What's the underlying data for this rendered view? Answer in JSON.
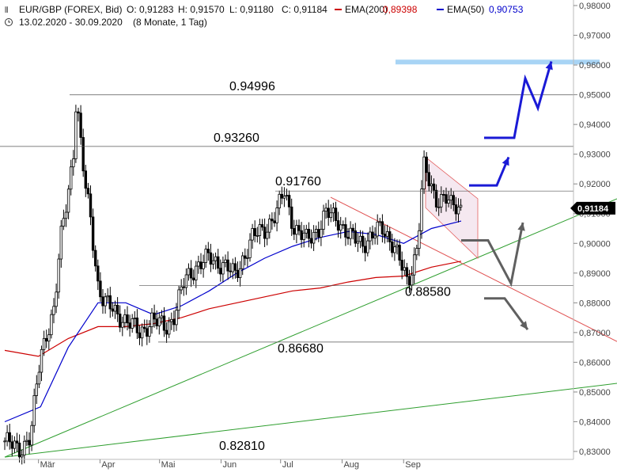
{
  "header": {
    "symbol": "EUR/GBP (FOREX, Bid)",
    "open": "O: 0,91283",
    "high": "H: 0,91570",
    "low": "L: 0,91180",
    "close": "C: 0,91184",
    "ema200_label": "EMA(200)",
    "ema200_value": "0,89398",
    "ema50_label": "EMA(50)",
    "ema50_value": "0,90753",
    "range": "13.02.2020 - 30.09.2020",
    "period": "(8 Monate, 1 Tag)"
  },
  "price_badge": "0,91184",
  "levels": [
    {
      "label": "0.94996",
      "value": 0.94996
    },
    {
      "label": "0.93260",
      "value": 0.9326
    },
    {
      "label": "0.91760",
      "value": 0.9176
    },
    {
      "label": "0.88580",
      "value": 0.8858
    },
    {
      "label": "0.86680",
      "value": 0.8668
    },
    {
      "label": "0.82810",
      "value": 0.8281
    }
  ],
  "colors": {
    "candle": "#000000",
    "ema200": "#cc0000",
    "ema50": "#0000cc",
    "trend_green": "#2e9e2e",
    "trend_red": "#e05050",
    "target_zone": "#a8d4f5",
    "arrow_up": "#1a1ad6",
    "arrow_gray": "#606060",
    "badge_bg": "#000000"
  },
  "chart_data": {
    "type": "candlestick",
    "title": "EUR/GBP (FOREX, Bid)",
    "ylim": [
      0.829,
      0.981
    ],
    "y_ticks": [
      "0,83000",
      "0,84000",
      "0,85000",
      "0,86000",
      "0,87000",
      "0,88000",
      "0,89000",
      "0,90000",
      "0,91000",
      "0,92000",
      "0,93000",
      "0,94000",
      "0,95000",
      "0,96000",
      "0,97000",
      "0,98000"
    ],
    "x_ticks": [
      "Mär",
      "Apr",
      "Mai",
      "Jun",
      "Jul",
      "Aug",
      "Sep"
    ],
    "close_path": [
      [
        "2020-02-13",
        0.8335
      ],
      [
        "2020-02-20",
        0.8305
      ],
      [
        "2020-02-26",
        0.835
      ],
      [
        "2020-03-02",
        0.862
      ],
      [
        "2020-03-05",
        0.87
      ],
      [
        "2020-03-09",
        0.878
      ],
      [
        "2020-03-12",
        0.9
      ],
      [
        "2020-03-16",
        0.918
      ],
      [
        "2020-03-19",
        0.933
      ],
      [
        "2020-03-20",
        0.9499
      ],
      [
        "2020-03-23",
        0.928
      ],
      [
        "2020-03-25",
        0.917
      ],
      [
        "2020-03-27",
        0.91
      ],
      [
        "2020-03-31",
        0.886
      ],
      [
        "2020-04-03",
        0.88
      ],
      [
        "2020-04-07",
        0.878
      ],
      [
        "2020-04-14",
        0.874
      ],
      [
        "2020-04-21",
        0.87
      ],
      [
        "2020-04-27",
        0.874
      ],
      [
        "2020-05-04",
        0.872
      ],
      [
        "2020-05-08",
        0.875
      ],
      [
        "2020-05-14",
        0.888
      ],
      [
        "2020-05-19",
        0.892
      ],
      [
        "2020-05-26",
        0.895
      ],
      [
        "2020-06-02",
        0.893
      ],
      [
        "2020-06-08",
        0.889
      ],
      [
        "2020-06-12",
        0.895
      ],
      [
        "2020-06-17",
        0.902
      ],
      [
        "2020-06-23",
        0.905
      ],
      [
        "2020-06-29",
        0.91
      ],
      [
        "2020-07-03",
        0.9176
      ],
      [
        "2020-07-08",
        0.905
      ],
      [
        "2020-07-14",
        0.901
      ],
      [
        "2020-07-20",
        0.905
      ],
      [
        "2020-07-24",
        0.91
      ],
      [
        "2020-07-30",
        0.908
      ],
      [
        "2020-08-05",
        0.902
      ],
      [
        "2020-08-11",
        0.9
      ],
      [
        "2020-08-17",
        0.903
      ],
      [
        "2020-08-21",
        0.905
      ],
      [
        "2020-08-27",
        0.9
      ],
      [
        "2020-09-01",
        0.89
      ],
      [
        "2020-09-03",
        0.8858
      ],
      [
        "2020-09-08",
        0.9
      ],
      [
        "2020-09-11",
        0.926
      ],
      [
        "2020-09-14",
        0.92
      ],
      [
        "2020-09-17",
        0.915
      ],
      [
        "2020-09-22",
        0.916
      ],
      [
        "2020-09-25",
        0.912
      ],
      [
        "2020-09-30",
        0.9118
      ]
    ],
    "ema50": [
      [
        "2020-02-13",
        0.84
      ],
      [
        "2020-03-02",
        0.845
      ],
      [
        "2020-03-16",
        0.865
      ],
      [
        "2020-03-31",
        0.88
      ],
      [
        "2020-04-14",
        0.88
      ],
      [
        "2020-04-28",
        0.876
      ],
      [
        "2020-05-12",
        0.879
      ],
      [
        "2020-05-26",
        0.884
      ],
      [
        "2020-06-09",
        0.89
      ],
      [
        "2020-06-23",
        0.895
      ],
      [
        "2020-07-07",
        0.899
      ],
      [
        "2020-07-21",
        0.902
      ],
      [
        "2020-08-04",
        0.904
      ],
      [
        "2020-08-18",
        0.903
      ],
      [
        "2020-09-01",
        0.9
      ],
      [
        "2020-09-15",
        0.905
      ],
      [
        "2020-09-30",
        0.9075
      ]
    ],
    "ema200": [
      [
        "2020-02-13",
        0.864
      ],
      [
        "2020-03-01",
        0.862
      ],
      [
        "2020-03-16",
        0.868
      ],
      [
        "2020-03-31",
        0.872
      ],
      [
        "2020-04-14",
        0.872
      ],
      [
        "2020-04-28",
        0.873
      ],
      [
        "2020-05-12",
        0.875
      ],
      [
        "2020-05-26",
        0.878
      ],
      [
        "2020-06-09",
        0.88
      ],
      [
        "2020-06-23",
        0.882
      ],
      [
        "2020-07-07",
        0.884
      ],
      [
        "2020-07-21",
        0.885
      ],
      [
        "2020-08-04",
        0.887
      ],
      [
        "2020-08-18",
        0.8885
      ],
      [
        "2020-09-01",
        0.889
      ],
      [
        "2020-09-15",
        0.892
      ],
      [
        "2020-09-30",
        0.894
      ]
    ],
    "target_zone_value": 0.961
  }
}
